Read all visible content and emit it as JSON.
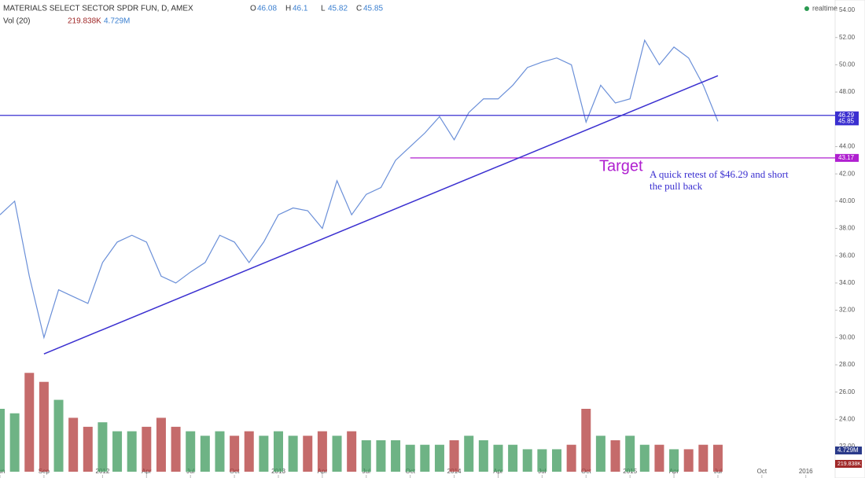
{
  "chart_data": {
    "type": "line",
    "title": "MATERIALS SELECT SECTOR SPDR FUN, D, AMEX",
    "ohlc": [
      {
        "label": "O",
        "value": 46.08
      },
      {
        "label": "H",
        "value": 46.1
      },
      {
        "label": "L",
        "value": 45.82
      },
      {
        "label": "C",
        "value": 45.85
      }
    ],
    "status": "realtime",
    "x": [
      "2011-06",
      "2011-07",
      "2011-08",
      "2011-09",
      "2011-10",
      "2011-11",
      "2011-12",
      "2012-01",
      "2012-02",
      "2012-03",
      "2012-04",
      "2012-05",
      "2012-06",
      "2012-07",
      "2012-08",
      "2012-09",
      "2012-10",
      "2012-11",
      "2012-12",
      "2013-01",
      "2013-02",
      "2013-03",
      "2013-04",
      "2013-05",
      "2013-06",
      "2013-07",
      "2013-08",
      "2013-09",
      "2013-10",
      "2013-11",
      "2013-12",
      "2014-01",
      "2014-02",
      "2014-03",
      "2014-04",
      "2014-05",
      "2014-06",
      "2014-07",
      "2014-08",
      "2014-09",
      "2014-10",
      "2014-11",
      "2014-12",
      "2015-01",
      "2015-02",
      "2015-03",
      "2015-04",
      "2015-05",
      "2015-06",
      "2015-07"
    ],
    "series": [
      {
        "color": "#6a8fd8",
        "values": [
          39.0,
          40.0,
          34.5,
          30.0,
          33.5,
          33.0,
          32.5,
          35.5,
          37.0,
          37.5,
          37.0,
          34.5,
          34.0,
          34.8,
          35.5,
          37.5,
          37.0,
          35.5,
          37.0,
          39.0,
          39.5,
          39.3,
          38.0,
          41.5,
          39.0,
          40.5,
          41.0,
          43.0,
          44.0,
          45.0,
          46.2,
          44.5,
          46.5,
          47.5,
          47.5,
          48.5,
          49.8,
          50.2,
          50.5,
          50.0,
          45.8,
          48.5,
          47.2,
          47.5,
          51.8,
          50.0,
          51.3,
          50.5,
          48.5,
          45.85
        ]
      }
    ],
    "volume": {
      "name": "Vol (20)",
      "last": "219.838K",
      "ma": "4.729M",
      "up_color": "#3d9a5c",
      "down_color": "#b23a3a",
      "values": [
        14,
        13,
        22,
        20,
        16,
        12,
        10,
        11,
        9,
        9,
        10,
        12,
        10,
        9,
        8,
        9,
        8,
        9,
        8,
        9,
        8,
        8,
        9,
        8,
        9,
        7,
        7,
        7,
        6,
        6,
        6,
        7,
        8,
        7,
        6,
        6,
        5,
        5,
        5,
        6,
        14,
        8,
        7,
        8,
        6,
        6,
        5,
        5,
        6,
        6
      ],
      "y2lim": [
        0,
        105
      ]
    },
    "levels": [
      {
        "value": 46.29,
        "color": "#3a2fd0"
      },
      {
        "value": 43.17,
        "color": "#b020d0"
      }
    ],
    "trendline": {
      "x": [
        "2011-09",
        "2015-07"
      ],
      "values": [
        28.8,
        49.2
      ],
      "color": "#3a2fd0"
    },
    "annotations": {
      "target": "Target",
      "note": "A quick retest of $46.29 and short the pull back"
    },
    "xlim": [
      "2011-06",
      "2016-03"
    ],
    "ylim": [
      19.7,
      54.75
    ],
    "yticks": [
      {
        "value": 54,
        "label": "54.00"
      },
      {
        "value": 52,
        "label": "52.00"
      },
      {
        "value": 50,
        "label": "50.00"
      },
      {
        "value": 48,
        "label": "48.00"
      },
      {
        "value": 46,
        "label": "46.00"
      },
      {
        "value": 44,
        "label": "44.00"
      },
      {
        "value": 42,
        "label": "42.00"
      },
      {
        "value": 40,
        "label": "40.00"
      },
      {
        "value": 38,
        "label": "38.00"
      },
      {
        "value": 36,
        "label": "36.00"
      },
      {
        "value": 34,
        "label": "34.00"
      },
      {
        "value": 32,
        "label": "32.00"
      },
      {
        "value": 30,
        "label": "30.00"
      },
      {
        "value": 28,
        "label": "28.00"
      },
      {
        "value": 26,
        "label": "26.00"
      },
      {
        "value": 24,
        "label": "24.00"
      },
      {
        "value": 22,
        "label": "22.00"
      }
    ],
    "xticks": [
      {
        "value": "2011-06",
        "label": "Jun"
      },
      {
        "value": "2011-09",
        "label": "Sep"
      },
      {
        "value": "2012-01",
        "label": "2012"
      },
      {
        "value": "2012-04",
        "label": "Apr"
      },
      {
        "value": "2012-07",
        "label": "Jul"
      },
      {
        "value": "2012-10",
        "label": "Oct"
      },
      {
        "value": "2013-01",
        "label": "2013"
      },
      {
        "value": "2013-04",
        "label": "Apr"
      },
      {
        "value": "2013-07",
        "label": "Jul"
      },
      {
        "value": "2013-10",
        "label": "Oct"
      },
      {
        "value": "2014-01",
        "label": "2014"
      },
      {
        "value": "2014-04",
        "label": "Apr"
      },
      {
        "value": "2014-07",
        "label": "Jul"
      },
      {
        "value": "2014-10",
        "label": "Oct"
      },
      {
        "value": "2015-01",
        "label": "2015"
      },
      {
        "value": "2015-04",
        "label": "Apr"
      },
      {
        "value": "2015-07",
        "label": "Jul"
      },
      {
        "value": "2015-10",
        "label": "Oct"
      },
      {
        "value": "2016-01",
        "label": "2016"
      }
    ]
  }
}
